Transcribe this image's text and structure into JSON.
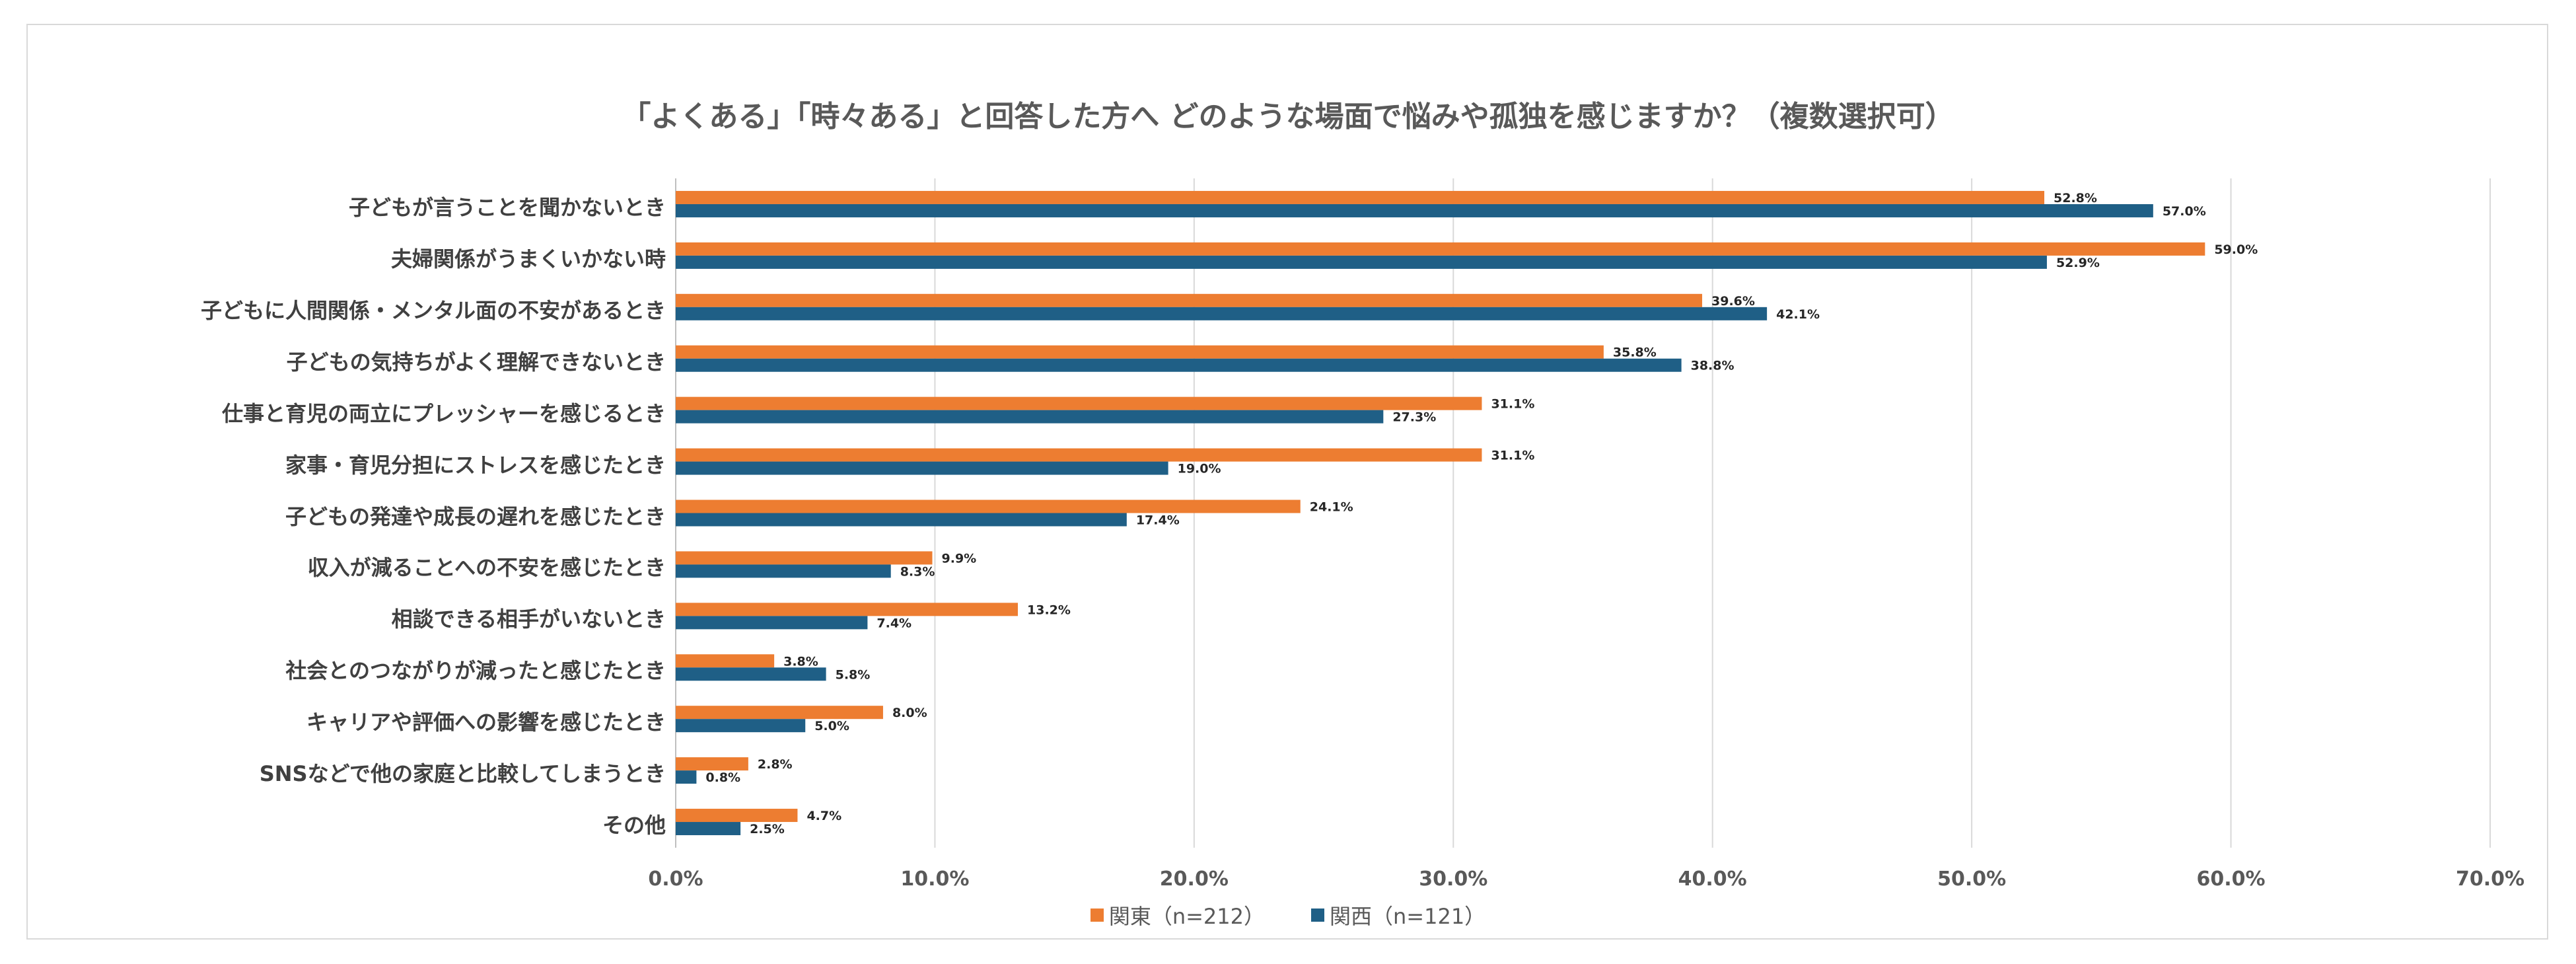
{
  "chart_data": {
    "type": "bar",
    "orientation": "horizontal",
    "title": "「よくある」「時々ある」と回答した方へ どのような場面で悩みや孤独を感じますか？（複数選択可）",
    "categories": [
      "子どもが言うことを聞かないとき",
      "夫婦関係がうまくいかない時",
      "子どもに人間関係・メンタル面の不安があるとき",
      "子どもの気持ちがよく理解できないとき",
      "仕事と育児の両立にプレッシャーを感じるとき",
      "家事・育児分担にストレスを感じたとき",
      "子どもの発達や成長の遅れを感じたとき",
      "収入が減ることへの不安を感じたとき",
      "相談できる相手がいないとき",
      "社会とのつながりが減ったと感じたとき",
      "キャリアや評価への影響を感じたとき",
      "SNSなどで他の家庭と比較してしまうとき",
      "その他"
    ],
    "series": [
      {
        "name": "関東（n=212）",
        "color": "#ED7D31",
        "values": [
          52.8,
          59.0,
          39.6,
          35.8,
          31.1,
          31.1,
          24.1,
          9.9,
          13.2,
          3.8,
          8.0,
          2.8,
          4.7
        ],
        "labels": [
          "52.8%",
          "59.0%",
          "39.6%",
          "35.8%",
          "31.1%",
          "31.1%",
          "24.1%",
          "9.9%",
          "13.2%",
          "3.8%",
          "8.0%",
          "2.8%",
          "4.7%"
        ]
      },
      {
        "name": "関西（n=121）",
        "color": "#1F5F86",
        "values": [
          57.0,
          52.9,
          42.1,
          38.8,
          27.3,
          19.0,
          17.4,
          8.3,
          7.4,
          5.8,
          5.0,
          0.8,
          2.5
        ],
        "labels": [
          "57.0%",
          "52.9%",
          "42.1%",
          "38.8%",
          "27.3%",
          "19.0%",
          "17.4%",
          "8.3%",
          "7.4%",
          "5.8%",
          "5.0%",
          "0.8%",
          "2.5%"
        ]
      }
    ],
    "xlim": [
      0,
      70
    ],
    "x_ticks": [
      0,
      10,
      20,
      30,
      40,
      50,
      60,
      70
    ],
    "x_tick_labels": [
      "0.0%",
      "10.0%",
      "20.0%",
      "30.0%",
      "40.0%",
      "50.0%",
      "60.0%",
      "70.0%"
    ],
    "grid": true,
    "legend_position": "bottom"
  }
}
